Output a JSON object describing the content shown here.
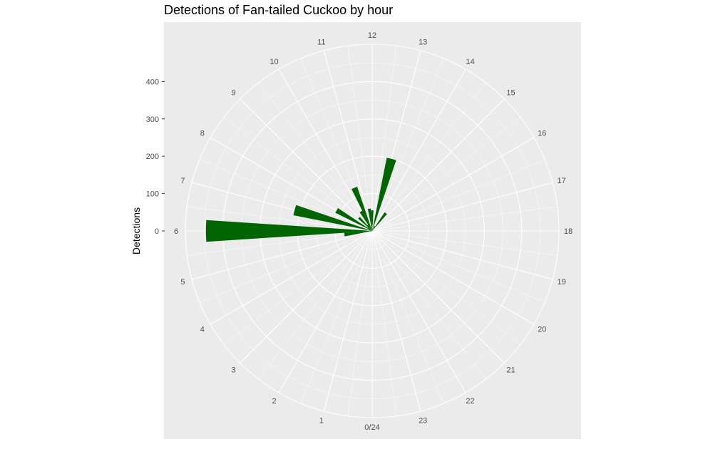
{
  "chart_data": {
    "type": "bar",
    "coord": "polar",
    "title": "Detections of Fan-tailed Cuckoo by hour",
    "ylabel": "Detections",
    "xlabel": "",
    "x_ticks": [
      "0/24",
      "1",
      "2",
      "3",
      "4",
      "5",
      "6",
      "7",
      "8",
      "9",
      "10",
      "11",
      "12",
      "13",
      "14",
      "15",
      "16",
      "17",
      "18",
      "19",
      "20",
      "21",
      "22",
      "23"
    ],
    "y_ticks": [
      0,
      100,
      200,
      300,
      400
    ],
    "ylim": [
      0,
      500
    ],
    "bin_hours": 0.5,
    "bars": [
      {
        "hour": 6.0,
        "value": 445
      },
      {
        "hour": 6.5,
        "value": 5
      },
      {
        "hour": 7.0,
        "value": 215
      },
      {
        "hour": 7.5,
        "value": 10
      },
      {
        "hour": 8.0,
        "value": 110
      },
      {
        "hour": 8.5,
        "value": 15
      },
      {
        "hour": 9.0,
        "value": 50
      },
      {
        "hour": 9.5,
        "value": 20
      },
      {
        "hour": 10.0,
        "value": 60
      },
      {
        "hour": 10.5,
        "value": 125
      },
      {
        "hour": 11.0,
        "value": 10
      },
      {
        "hour": 11.5,
        "value": 60
      },
      {
        "hour": 12.0,
        "value": 55
      },
      {
        "hour": 12.5,
        "value": 5
      },
      {
        "hour": 13.0,
        "value": 200
      },
      {
        "hour": 13.5,
        "value": 5
      },
      {
        "hour": 14.0,
        "value": 15
      },
      {
        "hour": 14.5,
        "value": 60
      },
      {
        "hour": 17.5,
        "value": 5
      },
      {
        "hour": 5.5,
        "value": 75
      },
      {
        "hour": 5.0,
        "value": 5
      }
    ],
    "bar_color": "#006400",
    "panel_color": "#EBEBEB",
    "grid_color": "#FFFFFF",
    "grid": true,
    "legend": "none"
  }
}
